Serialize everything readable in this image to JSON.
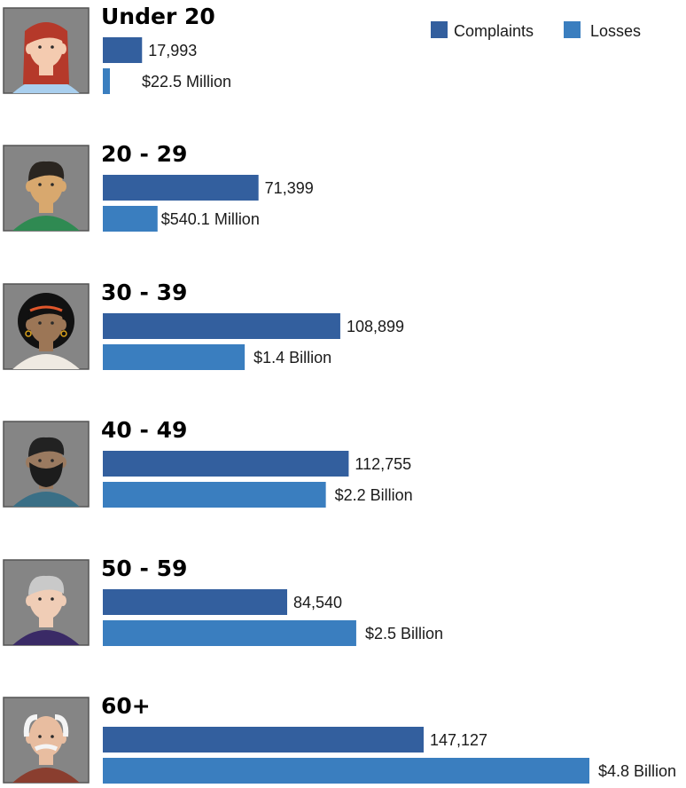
{
  "chart_data": {
    "type": "bar",
    "orientation": "horizontal",
    "colors": {
      "complaints": "#335f9e",
      "losses": "#3a7ebf",
      "avatar_bg": "#858585"
    },
    "legend": {
      "position": "top-right",
      "items": [
        {
          "name": "Complaints",
          "color": "#335f9e"
        },
        {
          "name": "Losses",
          "color": "#3a7ebf"
        }
      ]
    },
    "groups": [
      {
        "label": "Under 20",
        "avatar": "young-woman-red-hair-icon",
        "complaints": 17993,
        "complaints_label": "17,993",
        "losses_millions": 22.5,
        "losses_label": "$22.5 Million"
      },
      {
        "label": "20 - 29",
        "avatar": "young-man-green-shirt-icon",
        "complaints": 71399,
        "complaints_label": "71,399",
        "losses_millions": 540.1,
        "losses_label": "$540.1 Million"
      },
      {
        "label": "30 - 39",
        "avatar": "woman-curly-hair-earrings-icon",
        "complaints": 108899,
        "complaints_label": "108,899",
        "losses_millions": 1400,
        "losses_label": "$1.4 Billion"
      },
      {
        "label": "40 - 49",
        "avatar": "bearded-man-icon",
        "complaints": 112755,
        "complaints_label": "112,755",
        "losses_millions": 2200,
        "losses_label": "$2.2 Billion"
      },
      {
        "label": "50 - 59",
        "avatar": "gray-haired-woman-icon",
        "complaints": 84540,
        "complaints_label": "84,540",
        "losses_millions": 2500,
        "losses_label": "$2.5 Billion"
      },
      {
        "label": "60+",
        "avatar": "elderly-man-mustache-icon",
        "complaints": 147127,
        "complaints_label": "147,127",
        "losses_millions": 4800,
        "losses_label": "$4.8 Billion"
      }
    ]
  }
}
